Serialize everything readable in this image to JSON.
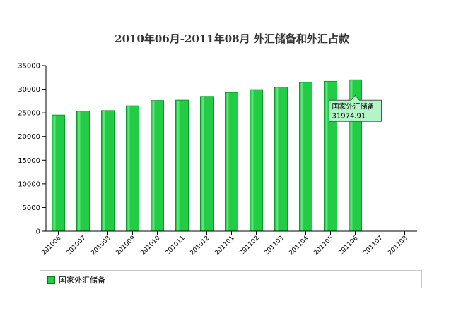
{
  "chart_data": {
    "type": "bar",
    "title": "2010年06月-2011年08月 外汇储备和外汇占款",
    "categories": [
      "201006",
      "201007",
      "201008",
      "201009",
      "201010",
      "201011",
      "201012",
      "201101",
      "201102",
      "201103",
      "201104",
      "201105",
      "201106",
      "201107",
      "201108"
    ],
    "series": [
      {
        "name": "国家外汇储备",
        "values": [
          24543,
          25381,
          25480,
          26483,
          27600,
          27680,
          28473,
          29316,
          29914,
          30447,
          31465,
          31660,
          31974.91,
          null,
          null
        ]
      }
    ],
    "yticks": [
      0,
      5000,
      10000,
      15000,
      20000,
      25000,
      30000,
      35000
    ],
    "ylim": [
      0,
      35000
    ],
    "legend_position": "bottom-left",
    "tooltip": {
      "series": "国家外汇储备",
      "value": "31974.91",
      "category": "201106"
    },
    "colors": {
      "bar": "#22cc44",
      "bar_edge": "#0e9a2c",
      "tooltip_bg": "#b4f5c8"
    }
  }
}
